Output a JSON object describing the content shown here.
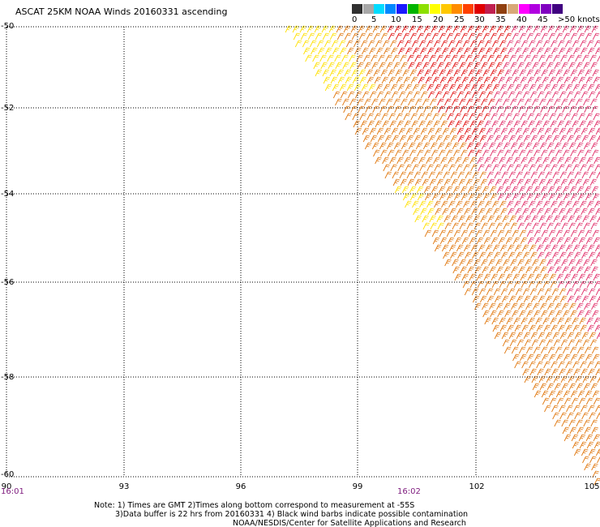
{
  "title": "ASCAT 25KM NOAA Winds 20160331 ascending",
  "legend": {
    "labels": [
      "0",
      "5",
      "10",
      "15",
      "20",
      "25",
      "30",
      "35",
      "40",
      "45",
      ">50 knots"
    ],
    "colors": [
      "#303030",
      "#a8a8a8",
      "#00dcff",
      "#0088ff",
      "#1a1aff",
      "#00b400",
      "#8ce000",
      "#ffff00",
      "#ffc800",
      "#ff8c00",
      "#ff4000",
      "#e00000",
      "#c02050",
      "#904010",
      "#d8a878",
      "#ff00ff",
      "#b000e0",
      "#8000c0",
      "#400080"
    ]
  },
  "axes": {
    "y_labels": [
      "-50",
      "-52",
      "-54",
      "-56",
      "-58",
      "-60"
    ],
    "x_labels": [
      "90",
      "93",
      "96",
      "99",
      "102",
      "105"
    ],
    "time_labels": [
      "16:01",
      "16:02"
    ]
  },
  "notes": {
    "line1": "Note: 1) Times are GMT 2)Times along bottom correspond to measurement at -55S",
    "line2": "3)Data buffer is 22 hrs from 20160331 4) Black wind barbs indicate possible contamination",
    "line3": "NOAA/NESDIS/Center for Satellite Applications and Research"
  },
  "colors": {
    "barb_yellow": "#ffe000",
    "barb_orange": "#e07810",
    "barb_red": "#e01010",
    "barb_magenta": "#e0306a",
    "grid": "#000000",
    "time_label": "#7d1a7d"
  }
}
